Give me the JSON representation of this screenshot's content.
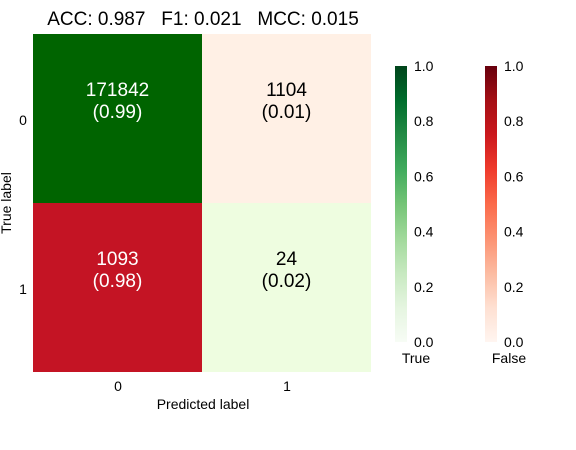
{
  "chart_data": {
    "type": "heatmap",
    "title": "ACC: 0.987   F1: 0.021   MCC: 0.015",
    "xlabel": "Predicted label",
    "ylabel": "True label",
    "x_tick_labels": [
      "0",
      "1"
    ],
    "y_tick_labels": [
      "0",
      "1"
    ],
    "cells": [
      [
        {
          "count": "171842",
          "ratio": "(0.99)",
          "fraction": 0.99,
          "correct": true
        },
        {
          "count": "1104",
          "ratio": "(0.01)",
          "fraction": 0.01,
          "correct": false
        }
      ],
      [
        {
          "count": "1093",
          "ratio": "(0.98)",
          "fraction": 0.98,
          "correct": false
        },
        {
          "count": "24",
          "ratio": "(0.02)",
          "fraction": 0.02,
          "correct": true
        }
      ]
    ],
    "colorbars": [
      {
        "label": "True",
        "range": [
          0.0,
          1.0
        ],
        "ticks": [
          "0.0",
          "0.2",
          "0.4",
          "0.6",
          "0.8",
          "1.0"
        ],
        "colors": [
          "#f7fcf5",
          "#e5f5e0",
          "#c7e9c0",
          "#a1d99b",
          "#74c476",
          "#41ab5d",
          "#238b45",
          "#006d2c",
          "#00441b"
        ]
      },
      {
        "label": "False",
        "range": [
          0.0,
          1.0
        ],
        "ticks": [
          "0.0",
          "0.2",
          "0.4",
          "0.6",
          "0.8",
          "1.0"
        ],
        "colors": [
          "#fff5f0",
          "#fee0d2",
          "#fcbba1",
          "#fc9272",
          "#fb6a4a",
          "#ef3b2c",
          "#cb181d",
          "#a50f15",
          "#67000d"
        ]
      }
    ],
    "cell_colors": {
      "correct_high": "#006400",
      "correct_low": "#eefde0",
      "false_high": "#c41424",
      "false_low": "#fff0e5"
    },
    "text_colors": {
      "on_dark": "#ffffff",
      "on_light": "#000000"
    }
  }
}
